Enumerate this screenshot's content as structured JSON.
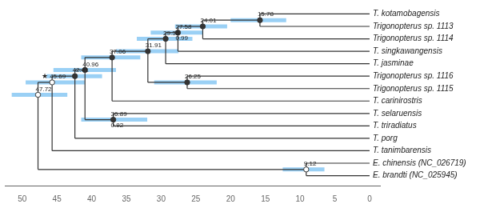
{
  "chart_data": {
    "type": "tree",
    "taxa": [
      "T. kotamobagensis",
      "Trigonopterus sp. 1113",
      "Trigonopterus sp. 1114",
      "T. singkawangensis",
      "T. jasminae",
      "Trigonopterus sp. 1116",
      "Trigonopterus sp. 1115",
      "T. carinirostris",
      "T. selaruensis",
      "T. triradiatus",
      "T. porg",
      "T. tanimbarensis",
      "E. chinensis (NC_026719)",
      "E. brandti (NC_025945)"
    ],
    "tip_age": 0,
    "nodes": [
      {
        "span": [
          "T. kotamobagensis",
          "Trigonopterus sp. 1113"
        ],
        "age": 15.78,
        "hpd": [
          12.0,
          20.0
        ],
        "marker": "filled"
      },
      {
        "span": [
          "T. kotamobagensis",
          "Trigonopterus sp. 1114"
        ],
        "age": 24.01,
        "hpd": [
          20.5,
          28.0
        ],
        "marker": "filled"
      },
      {
        "span": [
          "T. kotamobagensis",
          "T. singkawangensis"
        ],
        "age": 27.58,
        "pp": 0.99,
        "hpd": [
          24.0,
          31.5
        ],
        "marker": "filled"
      },
      {
        "span": [
          "T. kotamobagensis",
          "T. jasminae"
        ],
        "age": 29.35,
        "hpd": [
          25.5,
          33.5
        ],
        "marker": "filled"
      },
      {
        "span": [
          "Trigonopterus sp. 1116",
          "Trigonopterus sp. 1115"
        ],
        "age": 26.25,
        "hpd": [
          22.0,
          31.0
        ],
        "marker": "filled"
      },
      {
        "span": [
          "T. kotamobagensis",
          "Trigonopterus sp. 1115"
        ],
        "age": 31.91,
        "hpd": [
          27.5,
          36.5
        ],
        "marker": "filled"
      },
      {
        "span": [
          "T. kotamobagensis",
          "T. carinirostris"
        ],
        "age": 37.06,
        "hpd": [
          33.0,
          41.5
        ],
        "marker": "filled"
      },
      {
        "span": [
          "T. selaruensis",
          "T. triradiatus"
        ],
        "age": 36.89,
        "pp": 0.92,
        "hpd": [
          32.0,
          41.5
        ],
        "marker": "filled"
      },
      {
        "span": [
          "T. kotamobagensis",
          "T. triradiatus"
        ],
        "age": 40.96,
        "hpd": [
          36.5,
          45.5
        ],
        "marker": "filled"
      },
      {
        "span": [
          "T. kotamobagensis",
          "T. porg"
        ],
        "age": 42.41,
        "hpd": [
          38.5,
          46.5
        ],
        "marker": "filled"
      },
      {
        "span": [
          "T. kotamobagensis",
          "T. tanimbarensis"
        ],
        "age": 45.69,
        "hpd": [
          41.0,
          49.5
        ],
        "marker": "open",
        "annotation": "★"
      },
      {
        "span": [
          "T. kotamobagensis",
          "E. brandti (NC_025945)"
        ],
        "age": 47.72,
        "hpd": [
          43.5,
          51.5
        ],
        "marker": "open"
      },
      {
        "span": [
          "E. chinensis (NC_026719)",
          "E. brandti (NC_025945)"
        ],
        "age": 9.12,
        "hpd": [
          6.5,
          12.5
        ],
        "marker": "open"
      }
    ],
    "xlim": [
      52.5,
      -1.5
    ],
    "xticks": [
      0,
      5,
      10,
      15,
      20,
      25,
      30,
      35,
      40,
      45,
      50
    ],
    "grid": false,
    "tick_labels": "x"
  }
}
